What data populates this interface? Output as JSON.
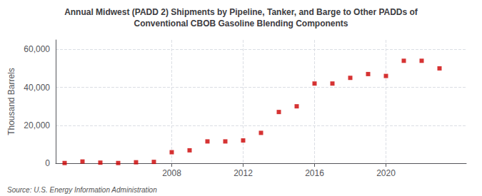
{
  "chart_data": {
    "type": "scatter",
    "title": "Annual Midwest (PADD 2) Shipments by Pipeline, Tanker, and Barge to Other PADDs of\nConventional CBOB Gasoline Blending Components",
    "ylabel": "Thousand Barrels",
    "source": "Source: U.S. Energy Information Administration",
    "x": [
      2002,
      2003,
      2004,
      2005,
      2006,
      2007,
      2008,
      2009,
      2010,
      2011,
      2012,
      2013,
      2014,
      2015,
      2016,
      2017,
      2018,
      2019,
      2020,
      2021,
      2022,
      2023
    ],
    "values": [
      100,
      900,
      300,
      100,
      500,
      700,
      5800,
      6800,
      11500,
      11500,
      12000,
      16000,
      27000,
      30000,
      42000,
      42000,
      45000,
      47000,
      46000,
      54000,
      54000,
      50000
    ],
    "color": "#cc0000",
    "marker": "square",
    "xlim": [
      2001.5,
      2024.5
    ],
    "xticks": [
      2008,
      2012,
      2016,
      2020
    ],
    "ylim": [
      0,
      65000
    ],
    "yticks": [
      0,
      {
        "value": 20000,
        "label": "20,000"
      },
      {
        "value": 40000,
        "label": "40,000"
      },
      {
        "value": 60000,
        "label": "60,000"
      }
    ],
    "grid": true
  }
}
